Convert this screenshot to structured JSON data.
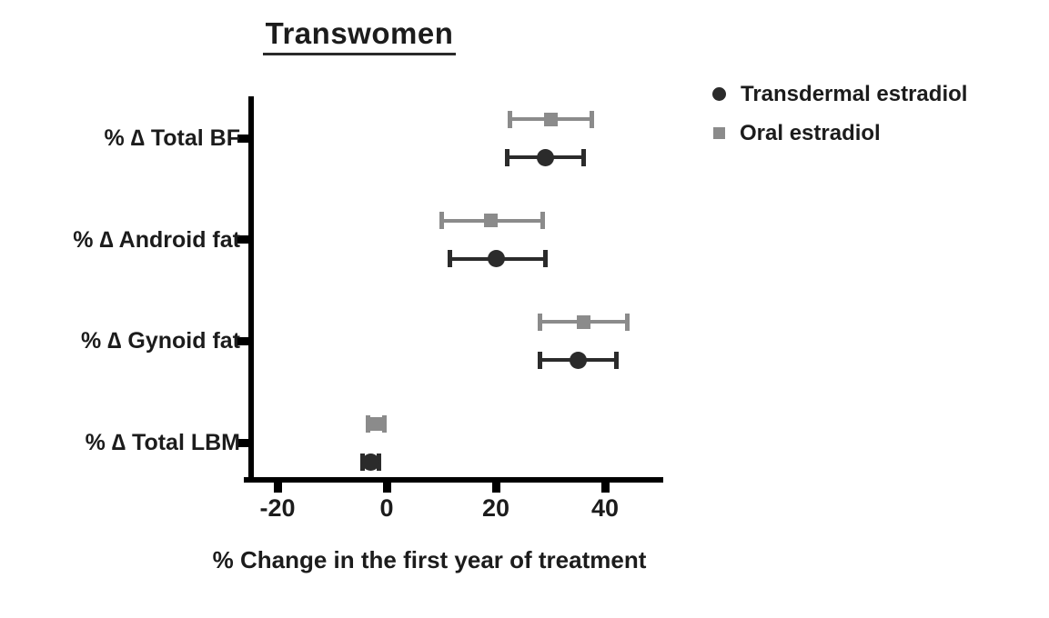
{
  "chart_data": {
    "type": "scatter",
    "subtype": "horizontal-dot-plot-with-error-bars",
    "title": "Transwomen",
    "xlabel": "% Change in the first year of treatment",
    "ylabel": "",
    "categories": [
      "% ∆ Total BF",
      "% ∆ Android fat",
      "% ∆ Gynoid fat",
      "% ∆ Total LBM"
    ],
    "x_ticks": [
      "-20",
      "0",
      "20",
      "40"
    ],
    "x_tick_values": [
      -20,
      0,
      20,
      40
    ],
    "xlim": [
      -25,
      50
    ],
    "grid": false,
    "legend_position": "top-right",
    "series": [
      {
        "name": "Transdermal estradiol",
        "marker": "circle",
        "color": "#2b2b2b",
        "values": [
          29,
          20,
          35,
          -3
        ],
        "ci_low": [
          22,
          11.5,
          28,
          -4.5
        ],
        "ci_high": [
          36,
          29,
          42,
          -1.5
        ]
      },
      {
        "name": "Oral estradiol",
        "marker": "square",
        "color": "#8b8b8b",
        "values": [
          30,
          19,
          36,
          -2
        ],
        "ci_low": [
          22.5,
          10,
          28,
          -3.5
        ],
        "ci_high": [
          37.5,
          28.5,
          44,
          -0.5
        ]
      }
    ]
  }
}
